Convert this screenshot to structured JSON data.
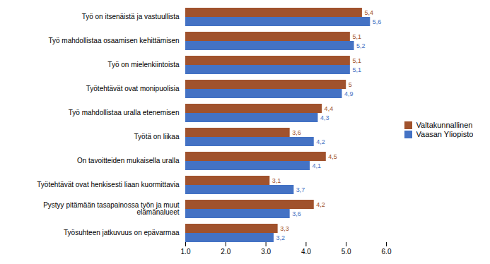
{
  "chart_data": {
    "type": "bar",
    "orientation": "horizontal",
    "categories": [
      "Työsuhteen jatkuvuus on epävarmaa",
      "Pystyy pitämään tasapainossa työn ja muut\nelämänalueet",
      "Työtehtävät ovat henkisesti liaan kuormittavia",
      "On tavoitteiden mukaisella uralla",
      "Työtä on liikaa",
      "Työ mahdollistaa uralla etenemisen",
      "Työtehtävät ovat monipuolisia",
      "Työ on mielenkiintoista",
      "Työ mahdollistaa osaamisen kehittämisen",
      "Työ on itsenäistä ja vastuullista"
    ],
    "series": [
      {
        "name": "Valtakunnallinen",
        "color": "#A0522D",
        "values": [
          3.3,
          4.2,
          3.1,
          4.5,
          3.6,
          4.4,
          5.0,
          5.1,
          5.1,
          5.4
        ],
        "value_labels": [
          "3,3",
          "4,2",
          "3,1",
          "4,5",
          "3,6",
          "4,4",
          "5",
          "5,1",
          "5,1",
          "5,4"
        ]
      },
      {
        "name": "Vaasan Yliopisto",
        "color": "#4472C4",
        "values": [
          3.2,
          3.6,
          3.7,
          4.1,
          4.2,
          4.3,
          4.9,
          5.1,
          5.2,
          5.6
        ],
        "value_labels": [
          "3,2",
          "3,6",
          "3,7",
          "4,1",
          "4,2",
          "4,3",
          "4,9",
          "5,1",
          "5,2",
          "5,6"
        ]
      }
    ],
    "xlim": [
      1,
      6
    ],
    "xticks": [
      1,
      2,
      3,
      4,
      5,
      6
    ],
    "data_labels": true,
    "legend": "right",
    "grid": false
  }
}
